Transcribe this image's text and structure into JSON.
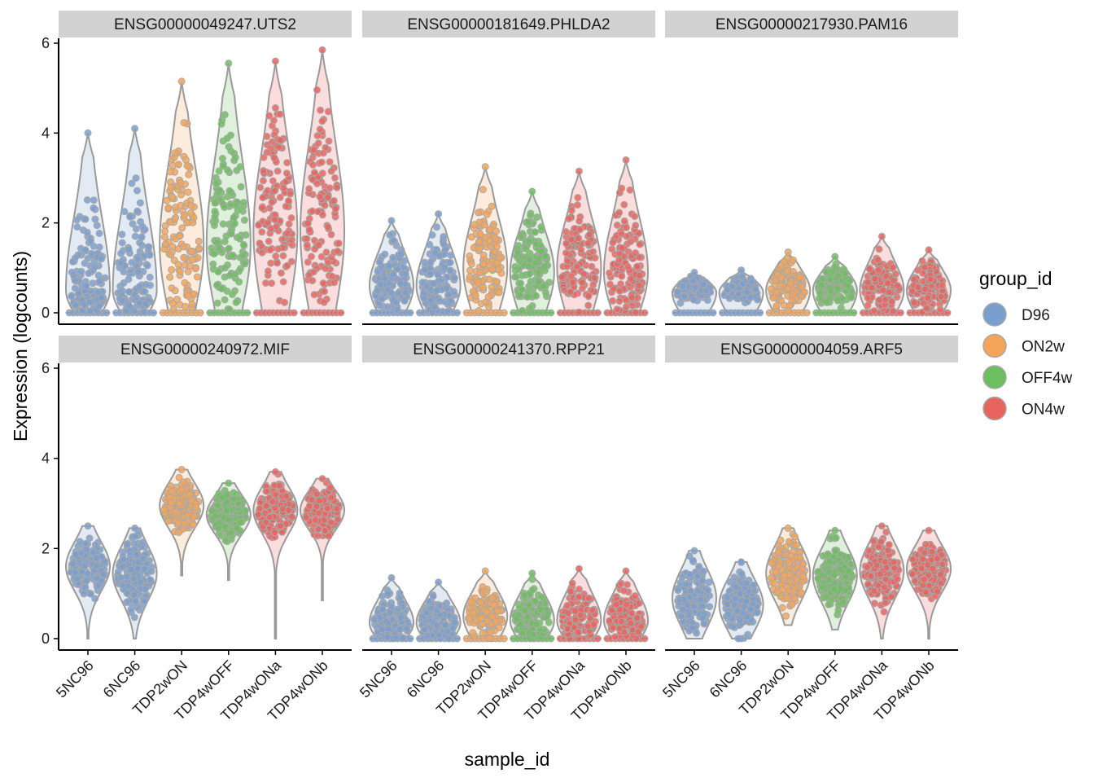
{
  "chart_data": {
    "type": "violin",
    "xlabel": "sample_id",
    "ylabel": "Expression (logcounts)",
    "ylim": [
      0,
      6
    ],
    "yticks": [
      0,
      2,
      4,
      6
    ],
    "samples": [
      "5NC96",
      "6NC96",
      "TDP2wON",
      "TDP4wOFF",
      "TDP4wONa",
      "TDP4wONb"
    ],
    "sample_groups": [
      "D96",
      "D96",
      "ON2w",
      "OFF4w",
      "ON4w",
      "ON4w"
    ],
    "legend": {
      "title": "group_id",
      "entries": [
        {
          "name": "D96",
          "color": "#7A9FCF"
        },
        {
          "name": "ON2w",
          "color": "#F5A55A"
        },
        {
          "name": "OFF4w",
          "color": "#6DBE5F"
        },
        {
          "name": "ON4w",
          "color": "#E8655F"
        }
      ]
    },
    "panels": [
      {
        "title": "ENSG00000049247.UTS2",
        "max": [
          4.0,
          4.1,
          5.15,
          5.55,
          5.6,
          5.85
        ],
        "mode": [
          0.5,
          0.5,
          1.5,
          1.5,
          1.8,
          1.8
        ],
        "kind": "zero"
      },
      {
        "title": "ENSG00000181649.PHLDA2",
        "max": [
          2.05,
          2.2,
          3.25,
          2.7,
          3.15,
          3.4
        ],
        "mode": [
          0.6,
          0.6,
          1.0,
          0.9,
          1.0,
          0.9
        ],
        "kind": "zero"
      },
      {
        "title": "ENSG00000217930.PAM16",
        "max": [
          0.9,
          0.95,
          1.35,
          1.25,
          1.7,
          1.4
        ],
        "mode": [
          0.45,
          0.45,
          0.5,
          0.5,
          0.5,
          0.5
        ],
        "kind": "zero"
      },
      {
        "title": "ENSG00000240972.MIF",
        "min": [
          0,
          0,
          1.4,
          1.3,
          0,
          0.85
        ],
        "max": [
          2.5,
          2.45,
          3.75,
          3.45,
          3.7,
          3.55
        ],
        "mode": [
          1.6,
          1.45,
          2.95,
          2.75,
          2.85,
          2.85
        ],
        "kind": "normal"
      },
      {
        "title": "ENSG00000241370.RPP21",
        "max": [
          1.35,
          1.25,
          1.5,
          1.45,
          1.55,
          1.5
        ],
        "mode": [
          0.35,
          0.35,
          0.5,
          0.4,
          0.4,
          0.4
        ],
        "kind": "zero"
      },
      {
        "title": "ENSG00000004059.ARF5",
        "min": [
          0,
          0,
          0.3,
          0.2,
          0,
          0
        ],
        "max": [
          1.95,
          1.7,
          2.45,
          2.4,
          2.5,
          2.4
        ],
        "mode": [
          0.9,
          0.75,
          1.45,
          1.4,
          1.5,
          1.55
        ],
        "kind": "normal"
      }
    ]
  }
}
